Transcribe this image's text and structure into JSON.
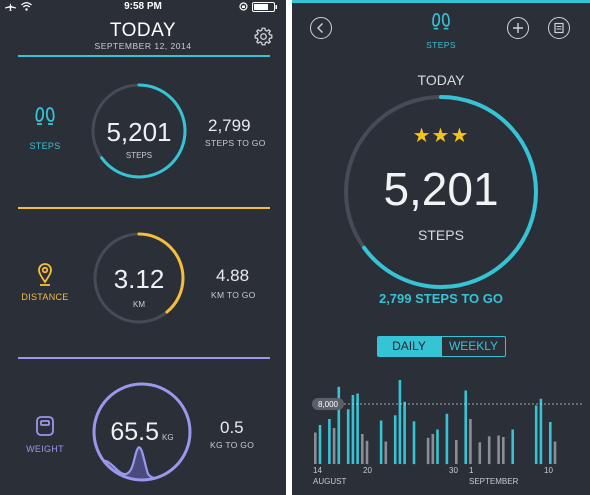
{
  "left": {
    "status": {
      "time": "9:58 PM"
    },
    "header": {
      "title": "TODAY",
      "date": "SEPTEMBER 12, 2014"
    },
    "steps": {
      "label": "STEPS",
      "value": "5,201",
      "unit": "STEPS",
      "togo_value": "2,799",
      "togo_label": "STEPS TO GO",
      "progress": 0.65
    },
    "distance": {
      "label": "DISTANCE",
      "value": "3.12",
      "unit": "KM",
      "togo_value": "4.88",
      "togo_label": "KM TO GO",
      "progress": 0.39
    },
    "weight": {
      "label": "WEIGHT",
      "value": "65.5",
      "unit": "KG",
      "togo_value": "0.5",
      "togo_label": "KG TO GO"
    },
    "colors": {
      "steps": "#35c3d6",
      "distance": "#f4bf3a",
      "weight": "#9a98ee"
    }
  },
  "right": {
    "header": {
      "title": "STEPS"
    },
    "icons": {
      "back": "chevron-left-icon",
      "add": "plus-icon",
      "list": "list-icon",
      "steps": "footprints-icon"
    },
    "today": "TODAY",
    "stars": "★★★",
    "value": "5,201",
    "unit": "STEPS",
    "togo": "2,799 STEPS TO GO",
    "progress": 0.65,
    "tabs": {
      "daily": "DAILY",
      "weekly": "WEEKLY",
      "active": "daily"
    },
    "chart_data": {
      "type": "bar",
      "target_label": "8,000",
      "target": 8000,
      "x_labels": [
        {
          "day": "14",
          "month": "AUGUST"
        },
        {
          "day": "20",
          "month": ""
        },
        {
          "day": "30",
          "month": ""
        },
        {
          "day": "1",
          "month": "SEPTEMBER"
        },
        {
          "day": "10",
          "month": ""
        }
      ],
      "values": [
        4200,
        5200,
        0,
        6000,
        4800,
        10300,
        0,
        7300,
        9200,
        9400,
        4000,
        3100,
        0,
        0,
        5800,
        3000,
        0,
        6500,
        11200,
        8300,
        0,
        5700,
        0,
        0,
        3500,
        4000,
        4600,
        0,
        6700,
        0,
        3200,
        0,
        9800,
        6000,
        0,
        2900,
        0,
        3700,
        0,
        3800,
        3600,
        0,
        4600,
        0,
        0,
        0,
        0,
        7800,
        8700,
        0,
        5600,
        3000
      ],
      "met": [
        false,
        true,
        false,
        true,
        false,
        true,
        false,
        true,
        true,
        true,
        false,
        false,
        false,
        false,
        true,
        false,
        false,
        true,
        true,
        true,
        false,
        true,
        false,
        false,
        false,
        false,
        true,
        false,
        true,
        false,
        false,
        false,
        true,
        false,
        false,
        false,
        false,
        false,
        false,
        false,
        false,
        false,
        true,
        false,
        false,
        false,
        false,
        true,
        true,
        false,
        true,
        false
      ]
    }
  }
}
